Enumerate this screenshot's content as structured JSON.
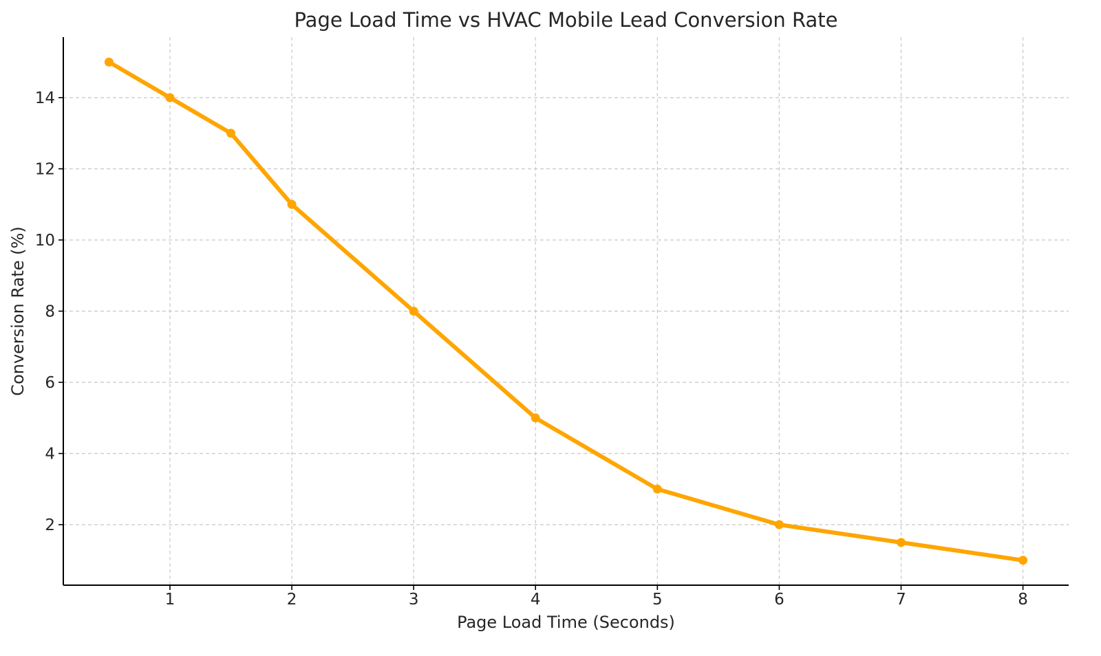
{
  "chart_data": {
    "type": "line",
    "title": "Page Load Time vs HVAC Mobile Lead Conversion Rate",
    "xlabel": "Page Load Time (Seconds)",
    "ylabel": "Conversion Rate (%)",
    "x": [
      0.5,
      1,
      1.5,
      2,
      3,
      4,
      5,
      6,
      7,
      8
    ],
    "series": [
      {
        "values": [
          15,
          14,
          13,
          11,
          8,
          5,
          3,
          2,
          1.5,
          1
        ]
      }
    ],
    "xticks": [
      1,
      2,
      3,
      4,
      5,
      6,
      7,
      8
    ],
    "yticks": [
      2,
      4,
      6,
      8,
      10,
      12,
      14
    ],
    "xlim": [
      0.125,
      8.375
    ],
    "ylim": [
      0.3,
      15.7
    ],
    "grid": true,
    "line_color": "#FFA500",
    "marker": "circle"
  }
}
